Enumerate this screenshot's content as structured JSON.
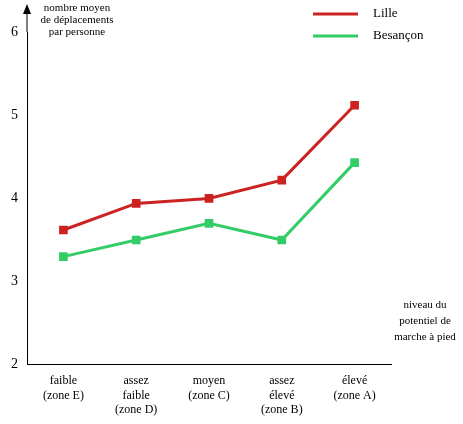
{
  "chart_data": {
    "type": "line",
    "categories": [
      [
        "faible",
        "(zone E)"
      ],
      [
        "assez",
        "faible",
        "(zone D)"
      ],
      [
        "moyen",
        "(zone C)"
      ],
      [
        "assez",
        "élevé",
        "(zone B)"
      ],
      [
        "élevé",
        "(zone A)"
      ]
    ],
    "y_label": [
      "nombre moyen",
      "de déplacements",
      "par personne"
    ],
    "x_label": [
      "niveau du",
      "potentiel de",
      "marche à pied"
    ],
    "series": [
      {
        "name": "Lille",
        "color": "#cc2222",
        "marker": "square",
        "values": [
          3.62,
          3.94,
          4.0,
          4.22,
          5.12
        ]
      },
      {
        "name": "Besançon",
        "color": "#33cc66",
        "marker": "square",
        "values": [
          3.3,
          3.5,
          3.7,
          3.5,
          4.43
        ]
      }
    ],
    "ylim": [
      2,
      6
    ],
    "yticks": [
      2,
      3,
      4,
      5,
      6
    ],
    "grid": false,
    "legend": "upper right"
  }
}
